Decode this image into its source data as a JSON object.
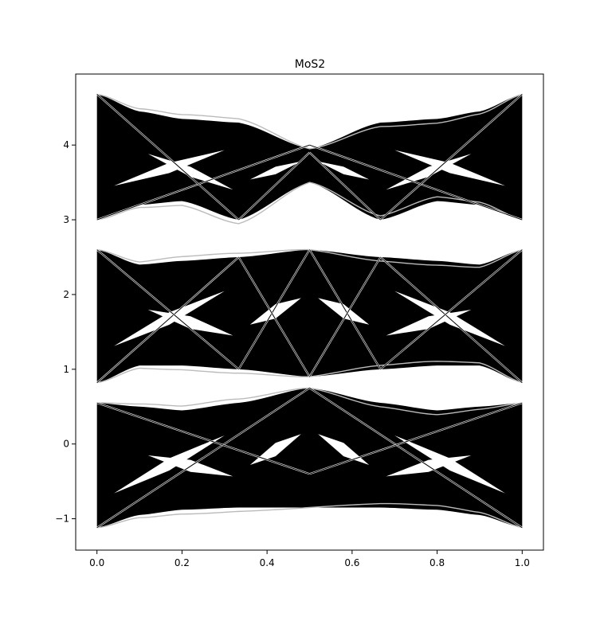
{
  "chart_data": {
    "type": "line",
    "title": "MoS2",
    "xlabel": "",
    "ylabel": "",
    "xlim": [
      -0.05,
      1.05
    ],
    "ylim": [
      -1.42,
      4.95
    ],
    "xticks": [
      0.0,
      0.2,
      0.4,
      0.6,
      0.8,
      1.0
    ],
    "xtick_labels": [
      "0.0",
      "0.2",
      "0.4",
      "0.6",
      "0.8",
      "1.0"
    ],
    "yticks": [
      -1,
      0,
      1,
      2,
      3,
      4
    ],
    "ytick_labels": [
      "−1",
      "0",
      "1",
      "2",
      "3",
      "4"
    ],
    "grid": false,
    "legend": "none",
    "line_color": "#000000",
    "highlight_color": "#bbbbbb",
    "x_special_points": [
      0.0,
      0.3333,
      0.5,
      0.6667,
      1.0
    ],
    "bands": [
      {
        "name": "",
        "lower_edge": {
          "x": [
            0.0,
            0.1,
            0.2,
            0.3333,
            0.5,
            0.6667,
            0.8,
            0.9,
            1.0
          ],
          "y": [
            -1.12,
            -0.95,
            -0.88,
            -0.85,
            -0.85,
            -0.85,
            -0.88,
            -0.95,
            -1.12
          ]
        },
        "upper_edge": {
          "x": [
            0.0,
            0.1,
            0.2,
            0.3333,
            0.5,
            0.6667,
            0.8,
            0.9,
            1.0
          ],
          "y": [
            0.55,
            0.5,
            0.45,
            0.55,
            0.75,
            0.55,
            0.45,
            0.5,
            0.55
          ]
        }
      },
      {
        "name": "",
        "lower_edge": {
          "x": [
            0.0,
            0.1,
            0.2,
            0.3333,
            0.5,
            0.6667,
            0.8,
            0.9,
            1.0
          ],
          "y": [
            0.82,
            1.05,
            1.05,
            1.0,
            0.9,
            1.0,
            1.05,
            1.05,
            0.82
          ]
        },
        "upper_edge": {
          "x": [
            0.0,
            0.1,
            0.2,
            0.3333,
            0.5,
            0.6667,
            0.8,
            0.9,
            1.0
          ],
          "y": [
            2.6,
            2.4,
            2.45,
            2.5,
            2.6,
            2.5,
            2.45,
            2.4,
            2.6
          ]
        }
      },
      {
        "name": "",
        "lower_edge": {
          "x": [
            0.0,
            0.1,
            0.2,
            0.3333,
            0.5,
            0.6667,
            0.8,
            0.9,
            1.0
          ],
          "y": [
            3.0,
            3.2,
            3.25,
            3.0,
            3.5,
            3.0,
            3.25,
            3.2,
            3.0
          ]
        },
        "upper_edge": {
          "x": [
            0.0,
            0.1,
            0.2,
            0.3333,
            0.5,
            0.6667,
            0.8,
            0.9,
            1.0
          ],
          "y": [
            4.68,
            4.45,
            4.35,
            4.3,
            3.95,
            4.3,
            4.35,
            4.45,
            4.68
          ]
        }
      }
    ],
    "crossing_lines": [
      {
        "x": [
          0.0,
          0.5
        ],
        "y": [
          -1.12,
          0.75
        ]
      },
      {
        "x": [
          0.0,
          0.5
        ],
        "y": [
          0.55,
          -0.4
        ]
      },
      {
        "x": [
          0.5,
          1.0
        ],
        "y": [
          0.75,
          -1.12
        ]
      },
      {
        "x": [
          0.5,
          1.0
        ],
        "y": [
          -0.4,
          0.55
        ]
      },
      {
        "x": [
          0.0,
          0.3333
        ],
        "y": [
          0.82,
          2.5
        ]
      },
      {
        "x": [
          0.0,
          0.3333
        ],
        "y": [
          2.6,
          1.0
        ]
      },
      {
        "x": [
          0.6667,
          1.0
        ],
        "y": [
          2.5,
          0.82
        ]
      },
      {
        "x": [
          0.6667,
          1.0
        ],
        "y": [
          1.0,
          2.6
        ]
      },
      {
        "x": [
          0.3333,
          0.5
        ],
        "y": [
          1.0,
          2.6
        ]
      },
      {
        "x": [
          0.5,
          0.6667
        ],
        "y": [
          2.6,
          1.0
        ]
      },
      {
        "x": [
          0.3333,
          0.5
        ],
        "y": [
          2.5,
          0.9
        ]
      },
      {
        "x": [
          0.5,
          0.6667
        ],
        "y": [
          0.9,
          2.5
        ]
      },
      {
        "x": [
          0.0,
          0.5
        ],
        "y": [
          3.0,
          4.0
        ]
      },
      {
        "x": [
          0.5,
          1.0
        ],
        "y": [
          4.0,
          3.0
        ]
      },
      {
        "x": [
          0.0,
          0.3333
        ],
        "y": [
          4.68,
          3.0
        ]
      },
      {
        "x": [
          0.6667,
          1.0
        ],
        "y": [
          3.0,
          4.68
        ]
      },
      {
        "x": [
          0.3333,
          0.5
        ],
        "y": [
          3.0,
          3.9
        ]
      },
      {
        "x": [
          0.5,
          0.6667
        ],
        "y": [
          3.9,
          3.0
        ]
      }
    ]
  }
}
